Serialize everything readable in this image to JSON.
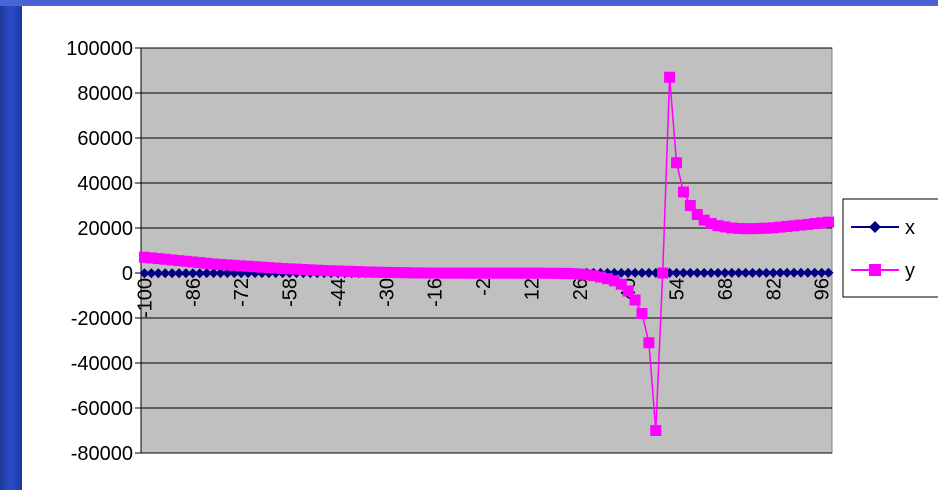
{
  "chart_data": {
    "type": "line",
    "title": "",
    "xlabel": "",
    "ylabel": "",
    "ylim": [
      -80000,
      100000
    ],
    "y_ticks": [
      "100000",
      "80000",
      "60000",
      "40000",
      "20000",
      "0",
      "-20000",
      "-40000",
      "-60000",
      "-80000"
    ],
    "x_tick_labels": [
      "-100",
      "-86",
      "-72",
      "-58",
      "-44",
      "-30",
      "-16",
      "-2",
      "12",
      "26",
      "40",
      "54",
      "68",
      "82",
      "96"
    ],
    "x": [
      -100,
      -98,
      -96,
      -94,
      -92,
      -90,
      -88,
      -86,
      -84,
      -82,
      -80,
      -78,
      -76,
      -74,
      -72,
      -70,
      -68,
      -66,
      -64,
      -62,
      -60,
      -58,
      -56,
      -54,
      -52,
      -50,
      -48,
      -46,
      -44,
      -42,
      -40,
      -38,
      -36,
      -34,
      -32,
      -30,
      -28,
      -26,
      -24,
      -22,
      -20,
      -18,
      -16,
      -14,
      -12,
      -10,
      -8,
      -6,
      -4,
      -2,
      0,
      2,
      4,
      6,
      8,
      10,
      12,
      14,
      16,
      18,
      20,
      22,
      24,
      26,
      28,
      30,
      32,
      34,
      36,
      38,
      40,
      42,
      44,
      46,
      48,
      50,
      52,
      54,
      56,
      58,
      60,
      62,
      64,
      66,
      68,
      70,
      72,
      74,
      76,
      78,
      80,
      82,
      84,
      86,
      88,
      90,
      92,
      94,
      96,
      98
    ],
    "grid": true,
    "plot_background": "#c0c0c0",
    "legend_position": "right",
    "series": [
      {
        "name": "x",
        "color": "#000080",
        "marker": "diamond",
        "values": [
          -100,
          -98,
          -96,
          -94,
          -92,
          -90,
          -88,
          -86,
          -84,
          -82,
          -80,
          -78,
          -76,
          -74,
          -72,
          -70,
          -68,
          -66,
          -64,
          -62,
          -60,
          -58,
          -56,
          -54,
          -52,
          -50,
          -48,
          -46,
          -44,
          -42,
          -40,
          -38,
          -36,
          -34,
          -32,
          -30,
          -28,
          -26,
          -24,
          -22,
          -20,
          -18,
          -16,
          -14,
          -12,
          -10,
          -8,
          -6,
          -4,
          -2,
          0,
          2,
          4,
          6,
          8,
          10,
          12,
          14,
          16,
          18,
          20,
          22,
          24,
          26,
          28,
          30,
          32,
          34,
          36,
          38,
          40,
          42,
          44,
          46,
          48,
          50,
          52,
          54,
          56,
          58,
          60,
          62,
          64,
          66,
          68,
          70,
          72,
          74,
          76,
          78,
          80,
          82,
          84,
          86,
          88,
          90,
          92,
          94,
          96,
          98
        ]
      },
      {
        "name": "y",
        "color": "#ff00ff",
        "marker": "square",
        "values": [
          7000,
          6700,
          6400,
          6100,
          5800,
          5500,
          5200,
          4900,
          4600,
          4300,
          4000,
          3800,
          3600,
          3400,
          3200,
          3000,
          2800,
          2600,
          2400,
          2200,
          2000,
          1850,
          1700,
          1550,
          1400,
          1250,
          1100,
          1000,
          900,
          800,
          700,
          600,
          500,
          420,
          350,
          280,
          220,
          160,
          110,
          60,
          20,
          -10,
          -30,
          -50,
          -60,
          -70,
          -80,
          -80,
          -80,
          -80,
          -80,
          -80,
          -80,
          -80,
          -80,
          -80,
          -80,
          -80,
          -100,
          -120,
          -150,
          -200,
          -300,
          -500,
          -800,
          -1200,
          -1800,
          -2500,
          -3500,
          -5000,
          -8000,
          -12000,
          -18000,
          -31000,
          -70000,
          0,
          87000,
          49000,
          36000,
          30000,
          26000,
          23500,
          22000,
          21000,
          20500,
          20000,
          19800,
          19700,
          19700,
          19800,
          19900,
          20100,
          20400,
          20700,
          21000,
          21300,
          21600,
          22000,
          22300,
          22600
        ]
      }
    ]
  }
}
